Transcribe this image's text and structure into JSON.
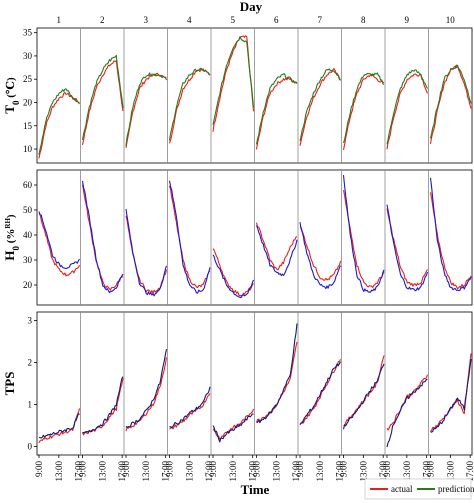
{
  "chart_data": [
    {
      "type": "line",
      "panel": "temperature",
      "ylabel_main": "T",
      "ylabel_sub": "0",
      "ylabel_unit": " (℃)",
      "ylim": [
        7,
        36
      ],
      "yticks": [
        10,
        15,
        20,
        25,
        30,
        35
      ],
      "days": [
        "1",
        "2",
        "3",
        "4",
        "5",
        "6",
        "7",
        "8",
        "9",
        "10"
      ],
      "series": [
        {
          "name": "actual",
          "color": "#e8201a",
          "days": [
            [
              8,
              15,
              19,
              21,
              22,
              21,
              20
            ],
            [
              11,
              18,
              23,
              26,
              28,
              29,
              18
            ],
            [
              10,
              18,
              23,
              25,
              26,
              26,
              25
            ],
            [
              11,
              18,
              23,
              25,
              27,
              27,
              26
            ],
            [
              14,
              21,
              27,
              31,
              34,
              34,
              18
            ],
            [
              10,
              17,
              22,
              24,
              25,
              25,
              24
            ],
            [
              11,
              17,
              21,
              24,
              26,
              27,
              25
            ],
            [
              10,
              17,
              22,
              25,
              26,
              25,
              24
            ],
            [
              10,
              17,
              22,
              25,
              26,
              26,
              22
            ],
            [
              11,
              18,
              24,
              27,
              28,
              24,
              19
            ]
          ]
        },
        {
          "name": "prediction",
          "color": "#2a7a1a",
          "days": [
            [
              9,
              16,
              20,
              22,
              23,
              21,
              20
            ],
            [
              12,
              19,
              24,
              27,
              29,
              30,
              19
            ],
            [
              11,
              19,
              24,
              26,
              26,
              26,
              25
            ],
            [
              12,
              19,
              24,
              26,
              27,
              27,
              26
            ],
            [
              15,
              22,
              28,
              32,
              34,
              33,
              19
            ],
            [
              11,
              18,
              23,
              25,
              26,
              25,
              24
            ],
            [
              12,
              18,
              22,
              25,
              27,
              27,
              25
            ],
            [
              11,
              18,
              23,
              26,
              26,
              26,
              24
            ],
            [
              11,
              18,
              23,
              26,
              27,
              26,
              23
            ],
            [
              12,
              19,
              25,
              27,
              28,
              25,
              20
            ]
          ]
        }
      ]
    },
    {
      "type": "line",
      "panel": "humidity",
      "ylabel_main": "H",
      "ylabel_sub": "0",
      "ylabel_unit": " (%",
      "ylabel_rh": "RH",
      "ylabel_close": ")",
      "ylim": [
        12,
        66
      ],
      "yticks": [
        20,
        30,
        40,
        50,
        60
      ],
      "series": [
        {
          "name": "actual",
          "color": "#e8201a",
          "days": [
            [
              49,
              40,
              30,
              26,
              24,
              25,
              28
            ],
            [
              60,
              45,
              30,
              21,
              18,
              20,
              24
            ],
            [
              48,
              32,
              22,
              18,
              17,
              19,
              26
            ],
            [
              60,
              45,
              30,
              22,
              19,
              20,
              26
            ],
            [
              35,
              28,
              21,
              18,
              16,
              17,
              20
            ],
            [
              45,
              38,
              30,
              26,
              29,
              35,
              40
            ],
            [
              44,
              36,
              28,
              23,
              22,
              24,
              29
            ],
            [
              58,
              42,
              28,
              21,
              19,
              21,
              25
            ],
            [
              50,
              38,
              27,
              21,
              20,
              21,
              26
            ],
            [
              57,
              40,
              28,
              21,
              19,
              20,
              24
            ]
          ]
        },
        {
          "name": "prediction",
          "color": "#1a1ad0",
          "days": [
            [
              50,
              42,
              32,
              28,
              27,
              28,
              30
            ],
            [
              62,
              47,
              31,
              20,
              17,
              19,
              25
            ],
            [
              50,
              33,
              21,
              17,
              16,
              18,
              28
            ],
            [
              62,
              48,
              28,
              20,
              17,
              18,
              27
            ],
            [
              32,
              26,
              20,
              17,
              15,
              16,
              22
            ],
            [
              44,
              36,
              28,
              25,
              24,
              30,
              38
            ],
            [
              45,
              33,
              24,
              20,
              19,
              21,
              28
            ],
            [
              64,
              40,
              24,
              18,
              17,
              19,
              26
            ],
            [
              52,
              36,
              24,
              19,
              18,
              19,
              25
            ],
            [
              63,
              38,
              25,
              19,
              18,
              19,
              23
            ]
          ]
        }
      ]
    },
    {
      "type": "line",
      "panel": "tps",
      "ylabel_main": "TPS",
      "ylim": [
        -0.2,
        3.2
      ],
      "yticks": [
        0,
        1,
        2,
        3
      ],
      "xlabel": "Time",
      "xticks": [
        "9:00",
        "13:00",
        "17:00",
        "9:00",
        "13:00",
        "17:00",
        "9:00",
        "13:00",
        "17:00",
        "9:00",
        "13:00",
        "17:00",
        "9:00",
        "13:00",
        "17:00",
        "9:00",
        "13:00",
        "17:00",
        "9:00",
        "13:00",
        "17:00",
        "9:00",
        "13:00",
        "17:00",
        "9:00",
        "13:00",
        "17:00",
        "9:00",
        "13:00",
        "17:00"
      ],
      "series": [
        {
          "name": "actual",
          "color": "#e8201a",
          "days": [
            [
              0.1,
              0.2,
              0.25,
              0.3,
              0.35,
              0.4,
              0.9
            ],
            [
              0.3,
              0.35,
              0.4,
              0.5,
              0.7,
              0.9,
              1.6
            ],
            [
              0.4,
              0.5,
              0.6,
              0.8,
              1.0,
              1.4,
              2.1
            ],
            [
              0.4,
              0.5,
              0.6,
              0.75,
              0.85,
              1.0,
              1.3
            ],
            [
              0.4,
              0.2,
              0.35,
              0.45,
              0.55,
              0.7,
              0.9
            ],
            [
              0.6,
              0.7,
              0.8,
              1.0,
              1.3,
              1.6,
              2.5
            ],
            [
              0.5,
              0.7,
              0.9,
              1.2,
              1.5,
              1.8,
              2.1
            ],
            [
              0.5,
              0.7,
              0.9,
              1.1,
              1.3,
              1.5,
              2.2
            ],
            [
              0.4,
              0.6,
              0.9,
              1.2,
              1.3,
              1.5,
              1.7
            ],
            [
              0.4,
              0.5,
              0.7,
              0.9,
              1.1,
              0.8,
              2.2
            ]
          ]
        },
        {
          "name": "prediction",
          "color": "#101880",
          "days": [
            [
              0.2,
              0.25,
              0.3,
              0.35,
              0.4,
              0.45,
              0.8
            ],
            [
              0.3,
              0.35,
              0.45,
              0.55,
              0.75,
              1.0,
              1.7
            ],
            [
              0.45,
              0.55,
              0.65,
              0.85,
              1.1,
              1.5,
              2.3
            ],
            [
              0.45,
              0.55,
              0.65,
              0.8,
              0.9,
              1.05,
              1.4
            ],
            [
              0.5,
              0.15,
              0.3,
              0.4,
              0.5,
              0.65,
              0.8
            ],
            [
              0.55,
              0.65,
              0.8,
              1.0,
              1.35,
              1.7,
              2.9
            ],
            [
              0.5,
              0.75,
              0.95,
              1.25,
              1.55,
              1.85,
              2.0
            ],
            [
              0.45,
              0.65,
              0.85,
              1.1,
              1.35,
              1.55,
              2.0
            ],
            [
              0.0,
              0.55,
              0.85,
              1.15,
              1.3,
              1.45,
              1.6
            ],
            [
              0.35,
              0.45,
              0.65,
              0.9,
              1.15,
              0.9,
              2.1
            ]
          ]
        }
      ]
    }
  ],
  "header": {
    "title": "Day"
  },
  "legend": {
    "actual": "actual",
    "prediction": "prediction"
  }
}
